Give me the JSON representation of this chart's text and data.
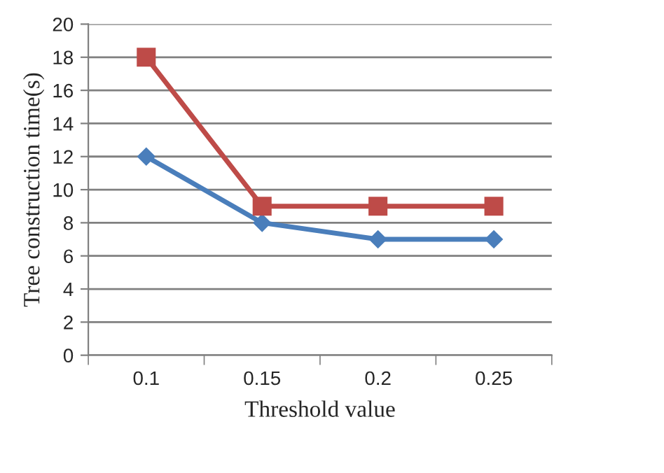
{
  "chart_data": {
    "type": "line",
    "xlabel": "Threshold value",
    "ylabel": "Tree construction time(s)",
    "categories": [
      "0.1",
      "0.15",
      "0.2",
      "0.25"
    ],
    "series": [
      {
        "color": "#4a7ebb",
        "values": [
          12,
          8,
          7,
          7
        ],
        "marker": "diamond"
      },
      {
        "color": "#be4b48",
        "values": [
          18,
          9,
          9,
          9
        ],
        "marker": "square"
      }
    ],
    "ylim": [
      0,
      20
    ],
    "yticks": [
      0,
      2,
      4,
      6,
      8,
      10,
      12,
      14,
      16,
      18,
      20
    ],
    "grid": "y",
    "line_style": "solid"
  }
}
